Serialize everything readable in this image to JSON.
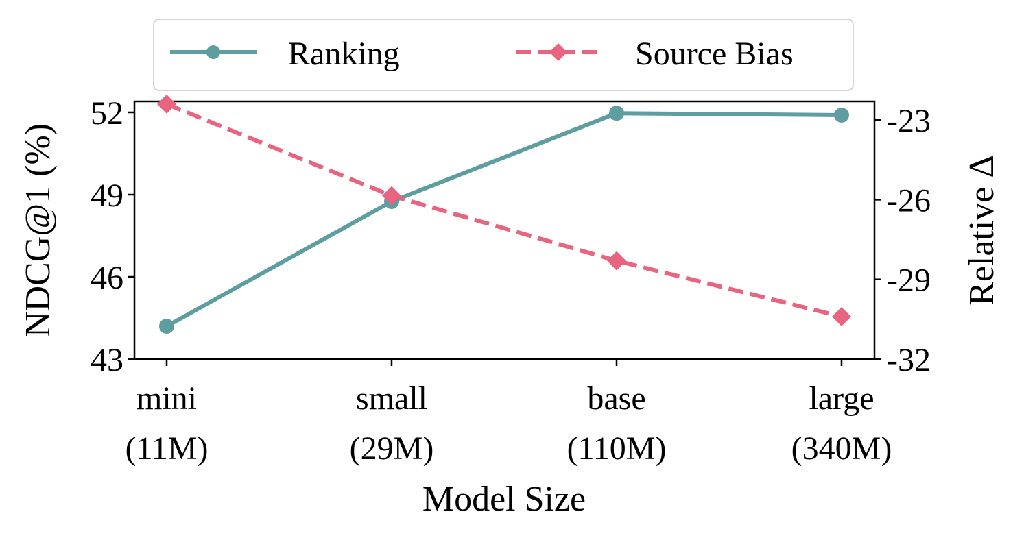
{
  "chart_data": {
    "type": "line",
    "title": "",
    "xlabel": "Model Size",
    "ylabel_left": "NDCG@1 (%)",
    "ylabel_right": "Relative Δ",
    "categories": [
      {
        "line1": "mini",
        "line2": "(11M)"
      },
      {
        "line1": "small",
        "line2": "(29M)"
      },
      {
        "line1": "base",
        "line2": "(110M)"
      },
      {
        "line1": "large",
        "line2": "(340M)"
      }
    ],
    "left_axis": {
      "ylim": [
        43,
        52.4
      ],
      "ticks": [
        "43",
        "46",
        "49",
        "52"
      ]
    },
    "right_axis": {
      "ylim": [
        -32,
        -22.3
      ],
      "ticks": [
        "-32",
        "-29",
        "-26",
        "-23"
      ]
    },
    "grid": false,
    "legend_position": "top-center, above plot",
    "series": [
      {
        "name": "Ranking",
        "axis": "left",
        "values": [
          44.2,
          48.75,
          51.97,
          51.9
        ],
        "color": "#5f9ea0",
        "style": "solid",
        "marker": "circle"
      },
      {
        "name": "Source Bias",
        "axis": "right",
        "values": [
          -22.4,
          -25.85,
          -28.3,
          -30.4
        ],
        "color": "#e8647f",
        "style": "dashed",
        "marker": "diamond"
      }
    ]
  }
}
